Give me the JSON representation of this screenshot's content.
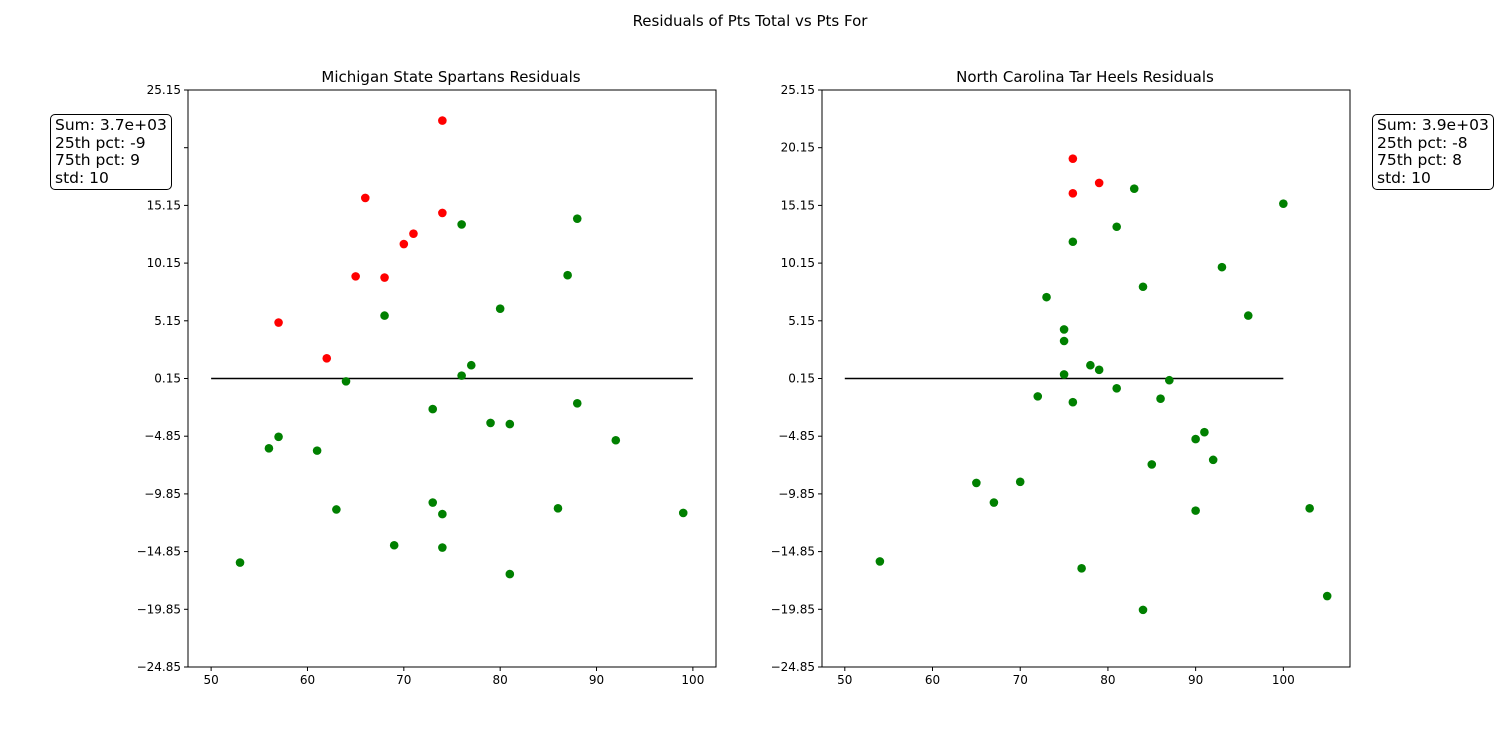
{
  "figure": {
    "suptitle": "Residuals of Pts Total vs Pts For",
    "colors": {
      "above": "#ff0000",
      "below": "#008000",
      "line": "#000000"
    }
  },
  "chart_data": [
    {
      "type": "scatter",
      "title": "Michigan State Spartans Residuals",
      "xlabel": "",
      "ylabel": "",
      "xlim": [
        47.6,
        102.4
      ],
      "ylim": [
        -24.85,
        25.15
      ],
      "xticks": [
        50,
        60,
        70,
        80,
        90,
        100
      ],
      "yticks": [
        -24.85,
        -19.85,
        -14.85,
        -9.85,
        -4.85,
        0.15,
        5.15,
        10.15,
        15.15,
        20.15,
        25.15
      ],
      "ytick_labels": [
        "−24.85",
        "−19.85",
        "−14.85",
        "−9.85",
        "−4.85",
        "0.15",
        "5.15",
        "10.15",
        "15.15",
        "",
        "25.15"
      ],
      "reference_line": {
        "y": 0.15,
        "x": [
          50,
          100
        ]
      },
      "stats": {
        "sum": "Sum: 3.7e+03",
        "p25": "25th pct: -9",
        "p75": "75th pct: 9",
        "std": "std: 10"
      },
      "points": [
        {
          "x": 74,
          "y": 22.5,
          "group": "above"
        },
        {
          "x": 66,
          "y": 15.8,
          "group": "above"
        },
        {
          "x": 74,
          "y": 14.5,
          "group": "above"
        },
        {
          "x": 71,
          "y": 12.7,
          "group": "above"
        },
        {
          "x": 70,
          "y": 11.8,
          "group": "above"
        },
        {
          "x": 65,
          "y": 9.0,
          "group": "above"
        },
        {
          "x": 68,
          "y": 8.9,
          "group": "above"
        },
        {
          "x": 57,
          "y": 5.0,
          "group": "above"
        },
        {
          "x": 62,
          "y": 1.9,
          "group": "above"
        },
        {
          "x": 88,
          "y": 14.0,
          "group": "below"
        },
        {
          "x": 76,
          "y": 13.5,
          "group": "below"
        },
        {
          "x": 87,
          "y": 9.1,
          "group": "below"
        },
        {
          "x": 80,
          "y": 6.2,
          "group": "below"
        },
        {
          "x": 68,
          "y": 5.6,
          "group": "below"
        },
        {
          "x": 77,
          "y": 1.3,
          "group": "below"
        },
        {
          "x": 76,
          "y": 0.4,
          "group": "below"
        },
        {
          "x": 64,
          "y": -0.1,
          "group": "below"
        },
        {
          "x": 88,
          "y": -2.0,
          "group": "below"
        },
        {
          "x": 73,
          "y": -2.5,
          "group": "below"
        },
        {
          "x": 79,
          "y": -3.7,
          "group": "below"
        },
        {
          "x": 81,
          "y": -3.8,
          "group": "below"
        },
        {
          "x": 57,
          "y": -4.9,
          "group": "below"
        },
        {
          "x": 92,
          "y": -5.2,
          "group": "below"
        },
        {
          "x": 56,
          "y": -5.9,
          "group": "below"
        },
        {
          "x": 61,
          "y": -6.1,
          "group": "below"
        },
        {
          "x": 73,
          "y": -10.6,
          "group": "below"
        },
        {
          "x": 63,
          "y": -11.2,
          "group": "below"
        },
        {
          "x": 86,
          "y": -11.1,
          "group": "below"
        },
        {
          "x": 74,
          "y": -11.6,
          "group": "below"
        },
        {
          "x": 99,
          "y": -11.5,
          "group": "below"
        },
        {
          "x": 69,
          "y": -14.3,
          "group": "below"
        },
        {
          "x": 74,
          "y": -14.5,
          "group": "below"
        },
        {
          "x": 53,
          "y": -15.8,
          "group": "below"
        },
        {
          "x": 81,
          "y": -16.8,
          "group": "below"
        }
      ]
    },
    {
      "type": "scatter",
      "title": "North Carolina Tar Heels Residuals",
      "xlabel": "",
      "ylabel": "",
      "xlim": [
        47.4,
        107.6
      ],
      "ylim": [
        -24.85,
        25.15
      ],
      "xticks": [
        50,
        60,
        70,
        80,
        90,
        100
      ],
      "yticks": [
        -24.85,
        -19.85,
        -14.85,
        -9.85,
        -4.85,
        0.15,
        5.15,
        10.15,
        15.15,
        20.15,
        25.15
      ],
      "ytick_labels": [
        "−24.85",
        "−19.85",
        "−14.85",
        "−9.85",
        "−4.85",
        "0.15",
        "5.15",
        "10.15",
        "15.15",
        "20.15",
        "25.15"
      ],
      "reference_line": {
        "y": 0.15,
        "x": [
          50,
          100
        ]
      },
      "stats": {
        "sum": "Sum: 3.9e+03",
        "p25": "25th pct: -8",
        "p75": "75th pct: 8",
        "std": "std: 10"
      },
      "points": [
        {
          "x": 76,
          "y": 19.2,
          "group": "above"
        },
        {
          "x": 79,
          "y": 17.1,
          "group": "above"
        },
        {
          "x": 76,
          "y": 16.2,
          "group": "above"
        },
        {
          "x": 83,
          "y": 16.6,
          "group": "below"
        },
        {
          "x": 100,
          "y": 15.3,
          "group": "below"
        },
        {
          "x": 81,
          "y": 13.3,
          "group": "below"
        },
        {
          "x": 76,
          "y": 12.0,
          "group": "below"
        },
        {
          "x": 93,
          "y": 9.8,
          "group": "below"
        },
        {
          "x": 84,
          "y": 8.1,
          "group": "below"
        },
        {
          "x": 73,
          "y": 7.2,
          "group": "below"
        },
        {
          "x": 96,
          "y": 5.6,
          "group": "below"
        },
        {
          "x": 75,
          "y": 4.4,
          "group": "below"
        },
        {
          "x": 75,
          "y": 3.4,
          "group": "below"
        },
        {
          "x": 78,
          "y": 1.3,
          "group": "below"
        },
        {
          "x": 79,
          "y": 0.9,
          "group": "below"
        },
        {
          "x": 75,
          "y": 0.5,
          "group": "below"
        },
        {
          "x": 87,
          "y": 0.0,
          "group": "below"
        },
        {
          "x": 81,
          "y": -0.7,
          "group": "below"
        },
        {
          "x": 72,
          "y": -1.4,
          "group": "below"
        },
        {
          "x": 86,
          "y": -1.6,
          "group": "below"
        },
        {
          "x": 76,
          "y": -1.9,
          "group": "below"
        },
        {
          "x": 91,
          "y": -4.5,
          "group": "below"
        },
        {
          "x": 90,
          "y": -5.1,
          "group": "below"
        },
        {
          "x": 92,
          "y": -6.9,
          "group": "below"
        },
        {
          "x": 85,
          "y": -7.3,
          "group": "below"
        },
        {
          "x": 70,
          "y": -8.8,
          "group": "below"
        },
        {
          "x": 65,
          "y": -8.9,
          "group": "below"
        },
        {
          "x": 67,
          "y": -10.6,
          "group": "below"
        },
        {
          "x": 103,
          "y": -11.1,
          "group": "below"
        },
        {
          "x": 90,
          "y": -11.3,
          "group": "below"
        },
        {
          "x": 54,
          "y": -15.7,
          "group": "below"
        },
        {
          "x": 77,
          "y": -16.3,
          "group": "below"
        },
        {
          "x": 105,
          "y": -18.7,
          "group": "below"
        },
        {
          "x": 84,
          "y": -19.9,
          "group": "below"
        }
      ]
    }
  ]
}
